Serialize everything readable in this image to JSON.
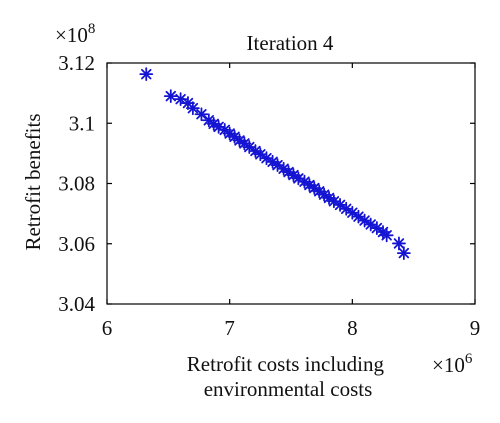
{
  "chart_data": {
    "type": "scatter",
    "title": "Iteration 4",
    "xlabel_lines": [
      "Retrofit costs including",
      "environmental costs"
    ],
    "ylabel": "Retrofit benefits",
    "x_multiplier": {
      "base": "×10",
      "exponent": "6"
    },
    "y_multiplier": {
      "base": "×10",
      "exponent": "8"
    },
    "xlim": [
      6,
      9
    ],
    "ylim": [
      3.04,
      3.12
    ],
    "xticks": [
      6,
      7,
      8,
      9
    ],
    "xtick_labels": [
      "6",
      "7",
      "8",
      "9"
    ],
    "yticks": [
      3.04,
      3.06,
      3.08,
      3.1,
      3.12
    ],
    "ytick_labels": [
      "3.04",
      "3.06",
      "3.08",
      "3.1",
      "3.12"
    ],
    "grid": false,
    "marker": "asterisk",
    "color": "#1414d2",
    "series": [
      {
        "x": [
          6.32,
          6.52,
          6.6,
          6.66,
          6.7,
          6.77,
          6.83,
          6.87,
          6.91,
          6.96,
          7.0,
          7.04,
          7.08,
          7.12,
          7.16,
          7.21,
          7.25,
          7.3,
          7.35,
          7.39,
          7.44,
          7.48,
          7.52,
          7.56,
          7.61,
          7.65,
          7.69,
          7.73,
          7.77,
          7.81,
          7.85,
          7.9,
          7.95,
          8.0,
          8.05,
          8.1,
          8.15,
          8.2,
          8.25,
          8.28,
          8.38,
          8.42
        ],
        "y": [
          3.1163,
          3.109,
          3.108,
          3.1067,
          3.105,
          3.103,
          3.101,
          3.0998,
          3.0988,
          3.0978,
          3.0966,
          3.0955,
          3.0943,
          3.0933,
          3.0921,
          3.0908,
          3.0897,
          3.0884,
          3.0872,
          3.0861,
          3.0849,
          3.0838,
          3.0828,
          3.0817,
          3.0806,
          3.0795,
          3.0785,
          3.0774,
          3.0763,
          3.0752,
          3.0741,
          3.0729,
          3.0716,
          3.0703,
          3.069,
          3.0677,
          3.0664,
          3.0652,
          3.0639,
          3.0628,
          3.0601,
          3.0569
        ]
      }
    ]
  }
}
